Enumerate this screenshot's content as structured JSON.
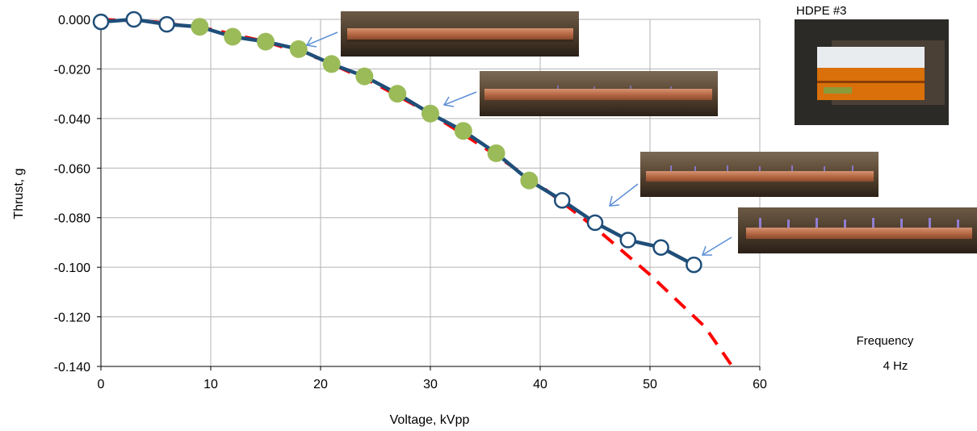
{
  "chart_data": {
    "type": "line",
    "xlabel": "Voltage, kVpp",
    "ylabel": "Thrust, g",
    "xlim": [
      0,
      60
    ],
    "ylim": [
      -0.14,
      0.0
    ],
    "xticks": [
      "0",
      "10",
      "20",
      "30",
      "40",
      "50",
      "60"
    ],
    "yticks": [
      "0.000",
      "-0.020",
      "-0.040",
      "-0.060",
      "-0.080",
      "-0.100",
      "-0.120",
      "-0.140"
    ],
    "grid": true,
    "series": [
      {
        "style": "solid line, open circle markers",
        "color": "#1f4e79",
        "x": [
          0,
          3,
          6,
          9,
          12,
          15,
          18,
          21,
          24,
          27,
          30,
          33,
          36,
          39,
          42,
          45,
          48,
          51,
          54
        ],
        "y": [
          -0.001,
          0.0,
          -0.002,
          -0.003,
          -0.007,
          -0.009,
          -0.012,
          -0.018,
          -0.023,
          -0.03,
          -0.038,
          -0.045,
          -0.054,
          -0.065,
          -0.073,
          -0.082,
          -0.089,
          -0.092,
          -0.099
        ]
      },
      {
        "style": "filled circle markers",
        "color": "#9bbb59",
        "x": [
          9,
          12,
          15,
          18,
          21,
          24,
          27,
          30,
          33,
          36,
          39
        ],
        "y": [
          -0.003,
          -0.007,
          -0.009,
          -0.012,
          -0.018,
          -0.023,
          -0.03,
          -0.038,
          -0.045,
          -0.054,
          -0.065
        ]
      },
      {
        "style": "dashed fit curve",
        "color": "#ff0000",
        "x": [
          0,
          5,
          10,
          15,
          20,
          25,
          30,
          35,
          40,
          45,
          50,
          55,
          57.5
        ],
        "y": [
          0.0,
          -0.001,
          -0.004,
          -0.009,
          -0.016,
          -0.026,
          -0.038,
          -0.052,
          -0.067,
          -0.084,
          -0.103,
          -0.124,
          -0.14
        ]
      }
    ],
    "annotations": {
      "photo_label": "HDPE #3",
      "frequency_label": "Frequency",
      "frequency_value": "4 Hz"
    }
  }
}
